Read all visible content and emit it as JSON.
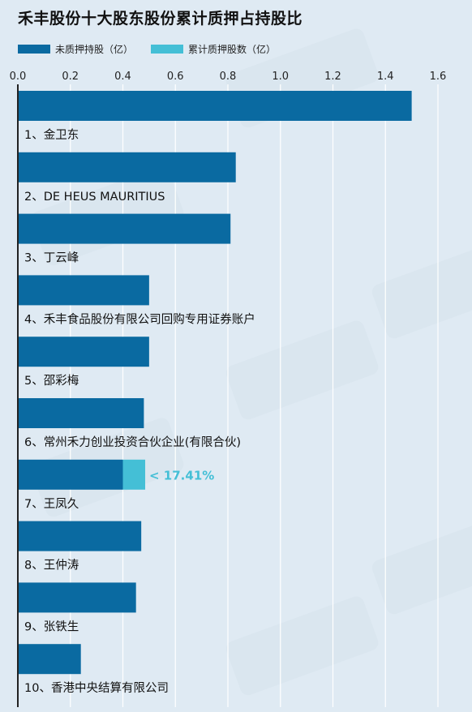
{
  "title": "禾丰股份十大股东股份累计质押占持股比",
  "legend": {
    "unpledged_label": "未质押持股（亿）",
    "pledged_label": "累计质押股数（亿）"
  },
  "colors": {
    "unpledged": "#0a6aa1",
    "pledged": "#44bfd6",
    "axis": "#222222",
    "grid": "#ffffff"
  },
  "chart_data": {
    "type": "bar",
    "orientation": "horizontal",
    "stacked": true,
    "x_ticks": [
      "0.0",
      "0.2",
      "0.4",
      "0.6",
      "0.8",
      "1.0",
      "1.2",
      "1.4",
      "1.6"
    ],
    "xlim": [
      0,
      1.6
    ],
    "grid": true,
    "legend_position": "top-left",
    "categories": [
      "1、金卫东",
      "2、DE HEUS MAURITIUS",
      "3、丁云峰",
      "4、禾丰食品股份有限公司回购专用证券账户",
      "5、邵彩梅",
      "6、常州禾力创业投资合伙企业(有限合伙)",
      "7、王凤久",
      "8、王仲涛",
      "9、张铁生",
      "10、香港中央结算有限公司"
    ],
    "series": [
      {
        "name": "未质押持股（亿）",
        "values": [
          1.5,
          0.83,
          0.81,
          0.5,
          0.5,
          0.48,
          0.4,
          0.47,
          0.45,
          0.24
        ]
      },
      {
        "name": "累计质押股数（亿）",
        "values": [
          0,
          0,
          0,
          0,
          0,
          0,
          0.085,
          0,
          0,
          0
        ]
      }
    ],
    "annotations": [
      {
        "category_index": 6,
        "text": "< 17.41%"
      }
    ]
  }
}
